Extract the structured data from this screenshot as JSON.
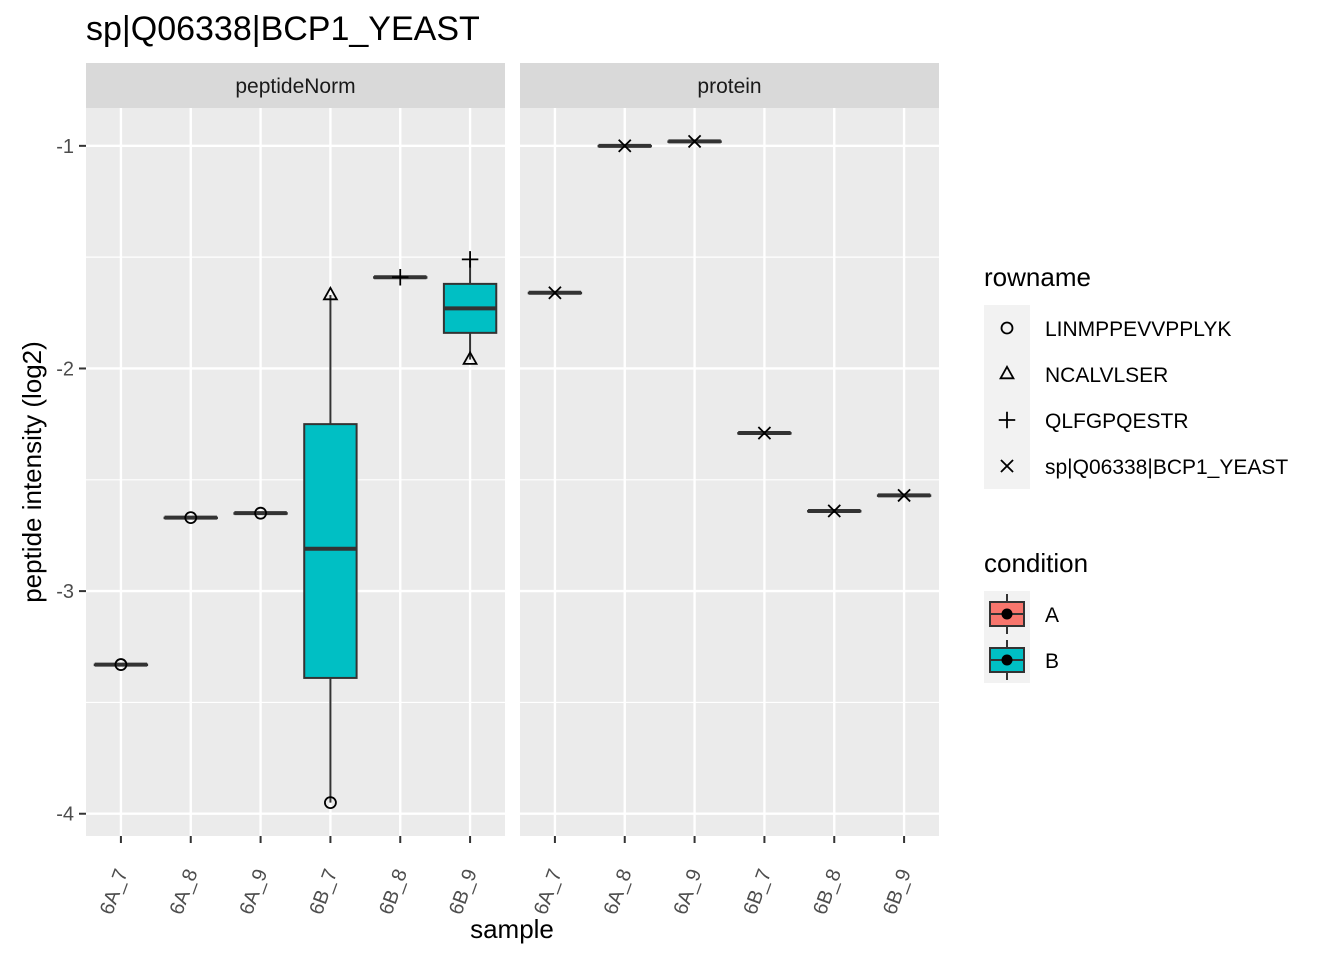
{
  "chart_data": {
    "type": "box",
    "title": "sp|Q06338|BCP1_YEAST",
    "xlabel": "sample",
    "ylabel": "peptide intensity (log2)",
    "ylim": [
      -4.1,
      -0.83
    ],
    "yticks": [
      -1,
      -2,
      -3,
      -4
    ],
    "yticklabels": [
      "-1",
      "-2",
      "-3",
      "-4"
    ],
    "categories": [
      "6A_7",
      "6A_8",
      "6A_9",
      "6B_7",
      "6B_8",
      "6B_9"
    ],
    "facets": [
      {
        "name": "peptideNorm",
        "boxes": [
          {
            "sample": "6A_7",
            "condition": "A",
            "min": -3.33,
            "q1": -3.33,
            "median": -3.33,
            "q3": -3.33,
            "max": -3.33
          },
          {
            "sample": "6A_8",
            "condition": "A",
            "min": -2.67,
            "q1": -2.67,
            "median": -2.67,
            "q3": -2.67,
            "max": -2.67
          },
          {
            "sample": "6A_9",
            "condition": "A",
            "min": -2.65,
            "q1": -2.65,
            "median": -2.65,
            "q3": -2.65,
            "max": -2.65
          },
          {
            "sample": "6B_7",
            "condition": "B",
            "min": -3.95,
            "q1": -3.39,
            "median": -2.81,
            "q3": -2.25,
            "max": -1.67
          },
          {
            "sample": "6B_8",
            "condition": "B",
            "min": -1.59,
            "q1": -1.59,
            "median": -1.59,
            "q3": -1.59,
            "max": -1.59
          },
          {
            "sample": "6B_9",
            "condition": "B",
            "min": -1.96,
            "q1": -1.84,
            "median": -1.73,
            "q3": -1.62,
            "max": -1.51
          }
        ],
        "points": [
          {
            "sample": "6A_7",
            "rowname": "LINMPPEVVPPLYK",
            "y": -3.33
          },
          {
            "sample": "6A_8",
            "rowname": "LINMPPEVVPPLYK",
            "y": -2.67
          },
          {
            "sample": "6A_9",
            "rowname": "LINMPPEVVPPLYK",
            "y": -2.65
          },
          {
            "sample": "6B_7",
            "rowname": "NCALVLSER",
            "y": -1.67
          },
          {
            "sample": "6B_7",
            "rowname": "LINMPPEVVPPLYK",
            "y": -3.95
          },
          {
            "sample": "6B_8",
            "rowname": "QLFGPQESTR",
            "y": -1.59
          },
          {
            "sample": "6B_9",
            "rowname": "QLFGPQESTR",
            "y": -1.51
          },
          {
            "sample": "6B_9",
            "rowname": "NCALVLSER",
            "y": -1.96
          }
        ]
      },
      {
        "name": "protein",
        "boxes": [
          {
            "sample": "6A_7",
            "condition": "A",
            "min": -1.66,
            "q1": -1.66,
            "median": -1.66,
            "q3": -1.66,
            "max": -1.66
          },
          {
            "sample": "6A_8",
            "condition": "A",
            "min": -1.0,
            "q1": -1.0,
            "median": -1.0,
            "q3": -1.0,
            "max": -1.0
          },
          {
            "sample": "6A_9",
            "condition": "A",
            "min": -0.98,
            "q1": -0.98,
            "median": -0.98,
            "q3": -0.98,
            "max": -0.98
          },
          {
            "sample": "6B_7",
            "condition": "B",
            "min": -2.29,
            "q1": -2.29,
            "median": -2.29,
            "q3": -2.29,
            "max": -2.29
          },
          {
            "sample": "6B_8",
            "condition": "B",
            "min": -2.64,
            "q1": -2.64,
            "median": -2.64,
            "q3": -2.64,
            "max": -2.64
          },
          {
            "sample": "6B_9",
            "condition": "B",
            "min": -2.57,
            "q1": -2.57,
            "median": -2.57,
            "q3": -2.57,
            "max": -2.57
          }
        ],
        "points": [
          {
            "sample": "6A_7",
            "rowname": "sp|Q06338|BCP1_YEAST",
            "y": -1.66
          },
          {
            "sample": "6A_8",
            "rowname": "sp|Q06338|BCP1_YEAST",
            "y": -1.0
          },
          {
            "sample": "6A_9",
            "rowname": "sp|Q06338|BCP1_YEAST",
            "y": -0.98
          },
          {
            "sample": "6B_7",
            "rowname": "sp|Q06338|BCP1_YEAST",
            "y": -2.29
          },
          {
            "sample": "6B_8",
            "rowname": "sp|Q06338|BCP1_YEAST",
            "y": -2.64
          },
          {
            "sample": "6B_9",
            "rowname": "sp|Q06338|BCP1_YEAST",
            "y": -2.57
          }
        ]
      }
    ],
    "legends": {
      "rowname": {
        "title": "rowname",
        "entries": [
          {
            "label": "LINMPPEVVPPLYK",
            "shape": "circle"
          },
          {
            "label": "NCALVLSER",
            "shape": "triangle"
          },
          {
            "label": "QLFGPQESTR",
            "shape": "plus"
          },
          {
            "label": "sp|Q06338|BCP1_YEAST",
            "shape": "cross"
          }
        ]
      },
      "condition": {
        "title": "condition",
        "entries": [
          {
            "label": "A",
            "color": "#F8766D"
          },
          {
            "label": "B",
            "color": "#00BFC4"
          }
        ]
      }
    },
    "colors": {
      "panel_background": "#EBEBEB",
      "grid": "#FFFFFF",
      "strip_background": "#D9D9D9",
      "condition_A": "#F8766D",
      "condition_B": "#00BFC4"
    },
    "grid": true,
    "legend_position": "right"
  }
}
